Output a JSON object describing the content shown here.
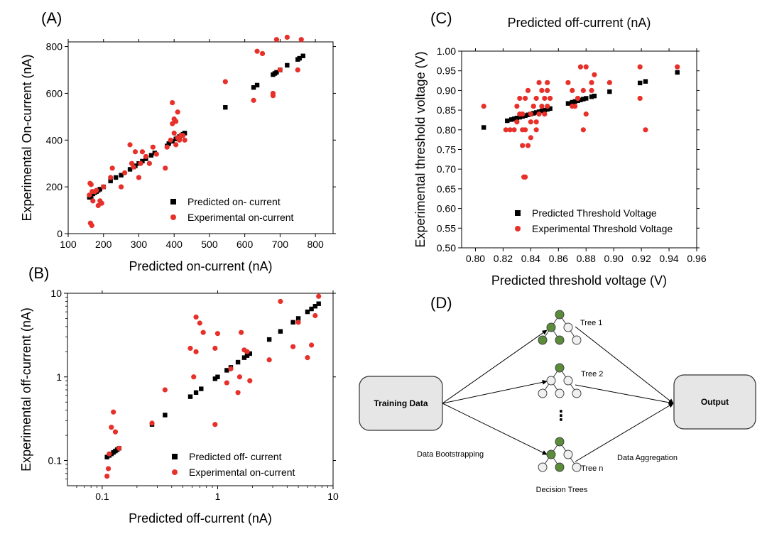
{
  "panels": {
    "a": "(A)",
    "b": "(B)",
    "c": "(C)",
    "d": "(D)"
  },
  "colors": {
    "predicted": "#000000",
    "experimental": "#e8302a",
    "node_green": "#5b8c3a",
    "box_fill": "#e6e6e6"
  },
  "chart_data": [
    {
      "id": "A",
      "type": "scatter",
      "title": "",
      "xlabel": "Predicted on-current (nA)",
      "ylabel": "Experimental On-current (nA)",
      "xlim": [
        100,
        850
      ],
      "ylim": [
        0,
        820
      ],
      "xticks": [
        100,
        200,
        300,
        400,
        500,
        600,
        700,
        800
      ],
      "yticks": [
        0,
        200,
        400,
        600,
        800
      ],
      "legend": "bottom-right",
      "series": [
        {
          "name": "Predicted on- current",
          "marker": "square",
          "x": [
            160,
            165,
            170,
            175,
            180,
            185,
            190,
            200,
            220,
            235,
            250,
            275,
            285,
            290,
            300,
            310,
            320,
            335,
            345,
            380,
            385,
            395,
            405,
            410,
            415,
            420,
            425,
            430,
            545,
            625,
            635,
            680,
            685,
            690,
            700,
            720,
            750,
            755,
            765
          ],
          "y": [
            155,
            160,
            170,
            175,
            180,
            185,
            190,
            200,
            225,
            240,
            250,
            275,
            285,
            290,
            300,
            310,
            320,
            335,
            345,
            375,
            385,
            395,
            405,
            410,
            415,
            420,
            425,
            430,
            540,
            625,
            635,
            680,
            685,
            690,
            700,
            720,
            745,
            750,
            760
          ]
        },
        {
          "name": "Experimental on-current",
          "marker": "circle",
          "x": [
            160,
            162,
            165,
            168,
            170,
            163,
            167,
            175,
            180,
            185,
            190,
            195,
            200,
            220,
            225,
            250,
            260,
            275,
            280,
            285,
            290,
            300,
            305,
            310,
            320,
            330,
            340,
            350,
            375,
            380,
            390,
            395,
            400,
            405,
            410,
            415,
            420,
            425,
            430,
            400,
            410,
            395,
            405,
            545,
            625,
            635,
            680,
            690,
            700,
            720,
            750,
            760,
            680,
            650
          ],
          "y": [
            165,
            215,
            210,
            180,
            140,
            45,
            35,
            180,
            185,
            120,
            140,
            130,
            200,
            240,
            280,
            200,
            260,
            380,
            300,
            285,
            350,
            240,
            300,
            350,
            330,
            300,
            370,
            340,
            280,
            370,
            400,
            560,
            430,
            380,
            410,
            400,
            420,
            420,
            400,
            490,
            520,
            470,
            480,
            650,
            570,
            780,
            600,
            830,
            700,
            840,
            700,
            830,
            590,
            770
          ]
        }
      ]
    },
    {
      "id": "B",
      "type": "scatter",
      "scale": "log",
      "title": "",
      "xlabel": "Predicted off-current (nA)",
      "ylabel": "Experimental off-current (nA)",
      "xlim": [
        0.05,
        10
      ],
      "ylim": [
        0.05,
        10
      ],
      "xticks": [
        "0.1",
        "1",
        "10"
      ],
      "yticks": [
        "0.1",
        "1",
        "10"
      ],
      "legend": "bottom-right",
      "series": [
        {
          "name": "Predicted off- current",
          "marker": "square",
          "x": [
            0.11,
            0.115,
            0.12,
            0.125,
            0.13,
            0.135,
            0.14,
            0.27,
            0.35,
            0.58,
            0.65,
            0.72,
            0.95,
            1.0,
            1.2,
            1.3,
            1.5,
            1.7,
            1.8,
            1.9,
            2.8,
            3.5,
            4.5,
            5.0,
            6.0,
            6.5,
            7.0,
            7.5
          ],
          "y": [
            0.11,
            0.115,
            0.12,
            0.125,
            0.13,
            0.135,
            0.14,
            0.27,
            0.35,
            0.58,
            0.65,
            0.72,
            0.95,
            1.0,
            1.2,
            1.3,
            1.5,
            1.7,
            1.8,
            1.9,
            2.8,
            3.5,
            4.5,
            5.0,
            6.0,
            6.5,
            7.0,
            7.5
          ]
        },
        {
          "name": "Experimental on-current",
          "marker": "circle",
          "x": [
            0.11,
            0.113,
            0.115,
            0.12,
            0.125,
            0.13,
            0.14,
            0.27,
            0.35,
            0.58,
            0.62,
            0.65,
            0.7,
            0.75,
            0.95,
            1.0,
            1.2,
            1.3,
            1.5,
            1.6,
            1.7,
            1.8,
            1.9,
            2.8,
            3.5,
            4.5,
            5.0,
            6.0,
            6.5,
            7.0,
            7.5,
            1.55,
            0.65,
            0.95
          ],
          "y": [
            0.065,
            0.08,
            0.12,
            0.25,
            0.38,
            0.22,
            0.14,
            0.28,
            0.7,
            2.2,
            1.0,
            5.2,
            4.4,
            3.4,
            0.27,
            3.3,
            0.85,
            1.25,
            0.65,
            3.4,
            2.1,
            2.0,
            0.9,
            1.6,
            8.0,
            2.3,
            4.5,
            1.7,
            2.4,
            5.4,
            9.2,
            1.0,
            2.0,
            2.2
          ]
        }
      ]
    },
    {
      "id": "C",
      "type": "scatter",
      "title": "Predicted off-current (nA)",
      "xlabel": "Predicted threshold voltage (V)",
      "ylabel": "Experimental threshold voltage (V)",
      "xlim": [
        0.79,
        0.96
      ],
      "ylim": [
        0.5,
        1.0
      ],
      "xticks": [
        "0.80",
        "0.82",
        "0.84",
        "0.86",
        "0.88",
        "0.90",
        "0.92",
        "0.94",
        "0.96"
      ],
      "yticks": [
        "0.50",
        "0.55",
        "0.60",
        "0.65",
        "0.70",
        "0.75",
        "0.80",
        "0.85",
        "0.90",
        "0.95",
        "1.00"
      ],
      "legend": "bottom-right",
      "series": [
        {
          "name": "Predicted Threshold Voltage",
          "marker": "square",
          "x": [
            0.806,
            0.823,
            0.826,
            0.828,
            0.83,
            0.832,
            0.834,
            0.836,
            0.838,
            0.84,
            0.842,
            0.844,
            0.846,
            0.848,
            0.85,
            0.852,
            0.854,
            0.867,
            0.87,
            0.872,
            0.874,
            0.876,
            0.878,
            0.88,
            0.884,
            0.886,
            0.897,
            0.919,
            0.923,
            0.946
          ],
          "y": [
            0.806,
            0.823,
            0.826,
            0.828,
            0.83,
            0.832,
            0.834,
            0.836,
            0.838,
            0.84,
            0.842,
            0.844,
            0.846,
            0.848,
            0.85,
            0.852,
            0.854,
            0.867,
            0.87,
            0.872,
            0.874,
            0.876,
            0.878,
            0.88,
            0.884,
            0.886,
            0.897,
            0.919,
            0.923,
            0.946
          ]
        },
        {
          "name": "Experimental Threshold Voltage",
          "marker": "circle",
          "x": [
            0.806,
            0.822,
            0.825,
            0.828,
            0.83,
            0.832,
            0.834,
            0.835,
            0.836,
            0.838,
            0.84,
            0.842,
            0.844,
            0.846,
            0.848,
            0.85,
            0.852,
            0.854,
            0.83,
            0.832,
            0.834,
            0.836,
            0.838,
            0.84,
            0.842,
            0.844,
            0.846,
            0.848,
            0.85,
            0.852,
            0.836,
            0.834,
            0.84,
            0.844,
            0.852,
            0.867,
            0.87,
            0.872,
            0.874,
            0.876,
            0.878,
            0.88,
            0.884,
            0.886,
            0.874,
            0.878,
            0.88,
            0.897,
            0.919,
            0.919,
            0.923,
            0.946,
            0.87,
            0.884
          ],
          "y": [
            0.86,
            0.8,
            0.8,
            0.8,
            0.86,
            0.88,
            0.76,
            0.68,
            0.8,
            0.9,
            0.84,
            0.86,
            0.88,
            0.92,
            0.9,
            0.84,
            0.92,
            0.88,
            0.82,
            0.84,
            0.8,
            0.88,
            0.76,
            0.82,
            0.86,
            0.8,
            0.84,
            0.86,
            0.88,
            0.9,
            0.68,
            0.84,
            0.78,
            0.82,
            0.86,
            0.92,
            0.9,
            0.86,
            0.88,
            0.96,
            0.9,
            0.84,
            0.92,
            0.94,
            0.88,
            0.8,
            0.96,
            0.92,
            0.96,
            0.88,
            0.8,
            0.96,
            0.86,
            0.9
          ]
        }
      ]
    }
  ],
  "diagram": {
    "training_label": "Training Data",
    "output_label": "Output",
    "trees": [
      "Tree 1",
      "Tree 2",
      "Tree n"
    ],
    "ellipsis": "⋮",
    "bootstrapping": "Data Bootstrapping",
    "aggregation": "Data Aggregation",
    "decision_trees": "Decision Trees"
  }
}
